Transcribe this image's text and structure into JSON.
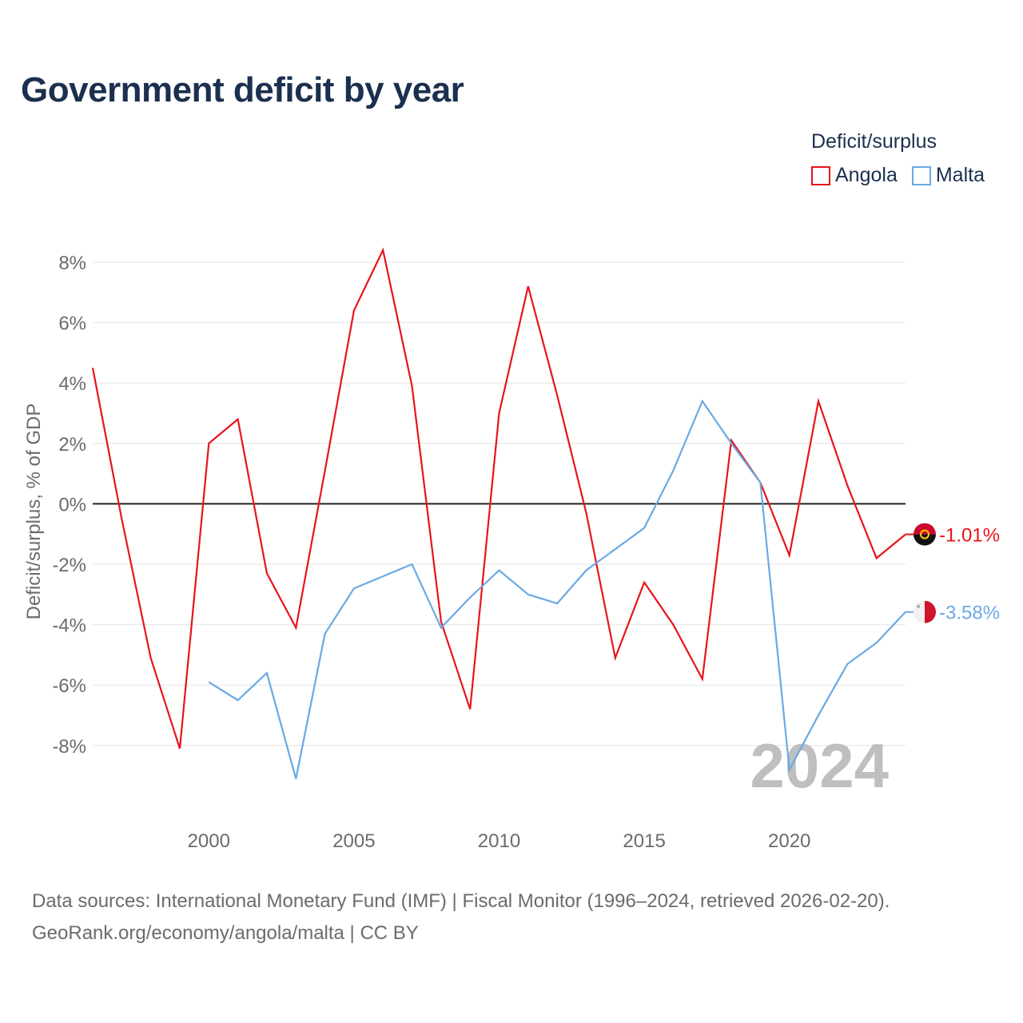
{
  "title": "Government deficit by year",
  "legend": {
    "title": "Deficit/surplus",
    "items": [
      {
        "name": "Angola",
        "color": "#e8141a"
      },
      {
        "name": "Malta",
        "color": "#6aa9e3"
      }
    ]
  },
  "year_watermark": "2024",
  "footer": {
    "line1": "Data sources: International Monetary Fund (IMF) | Fiscal Monitor (1996–2024, retrieved 2026-02-20).",
    "line2": "GeoRank.org/economy/angola/malta | CC BY"
  },
  "chart_data": {
    "type": "line",
    "title": "Government deficit by year",
    "xlabel": "",
    "ylabel": "Deficit/surplus, % of GDP",
    "xlim": [
      1996,
      2024
    ],
    "ylim": [
      -10,
      8.5
    ],
    "x_ticks": [
      2000,
      2005,
      2010,
      2015,
      2020
    ],
    "y_ticks": [
      8,
      6,
      4,
      2,
      0,
      -2,
      -4,
      -6,
      -8
    ],
    "y_tick_labels": [
      "8%",
      "6%",
      "4%",
      "2%",
      "0%",
      "-2%",
      "-4%",
      "-6%",
      "-8%"
    ],
    "zero_line": true,
    "grid": true,
    "series": [
      {
        "name": "Angola",
        "color": "#e8141a",
        "end_label": "-1.01%",
        "flag_icon": "angola-flag-icon",
        "points": [
          [
            1996,
            4.5
          ],
          [
            1997,
            -0.5
          ],
          [
            1998,
            -5.1
          ],
          [
            1999,
            -8.1
          ],
          [
            2000,
            2.0
          ],
          [
            2001,
            2.8
          ],
          [
            2002,
            -2.3
          ],
          [
            2003,
            -4.1
          ],
          [
            2004,
            1.1
          ],
          [
            2005,
            6.4
          ],
          [
            2006,
            8.4
          ],
          [
            2007,
            3.9
          ],
          [
            2008,
            -3.9
          ],
          [
            2009,
            -6.8
          ],
          [
            2010,
            3.0
          ],
          [
            2011,
            7.2
          ],
          [
            2012,
            3.6
          ],
          [
            2013,
            -0.3
          ],
          [
            2014,
            -5.1
          ],
          [
            2015,
            -2.6
          ],
          [
            2016,
            -4.0
          ],
          [
            2017,
            -5.8
          ],
          [
            2018,
            2.1
          ],
          [
            2019,
            0.7
          ],
          [
            2020,
            -1.7
          ],
          [
            2021,
            3.4
          ],
          [
            2022,
            0.6
          ],
          [
            2023,
            -1.8
          ],
          [
            2024,
            -1.01
          ]
        ]
      },
      {
        "name": "Malta",
        "color": "#6aa9e3",
        "end_label": "-3.58%",
        "flag_icon": "malta-flag-icon",
        "points": [
          [
            2000,
            -5.9
          ],
          [
            2001,
            -6.5
          ],
          [
            2002,
            -5.6
          ],
          [
            2003,
            -9.1
          ],
          [
            2004,
            -4.3
          ],
          [
            2005,
            -2.8
          ],
          [
            2006,
            -2.4
          ],
          [
            2007,
            -2.0
          ],
          [
            2008,
            -4.1
          ],
          [
            2009,
            -3.1
          ],
          [
            2010,
            -2.2
          ],
          [
            2011,
            -3.0
          ],
          [
            2012,
            -3.3
          ],
          [
            2013,
            -2.2
          ],
          [
            2014,
            -1.5
          ],
          [
            2015,
            -0.8
          ],
          [
            2016,
            1.1
          ],
          [
            2017,
            3.4
          ],
          [
            2018,
            2.0
          ],
          [
            2019,
            0.7
          ],
          [
            2020,
            -8.8
          ],
          [
            2021,
            -7.0
          ],
          [
            2022,
            -5.3
          ],
          [
            2023,
            -4.6
          ],
          [
            2024,
            -3.58
          ]
        ]
      }
    ]
  }
}
